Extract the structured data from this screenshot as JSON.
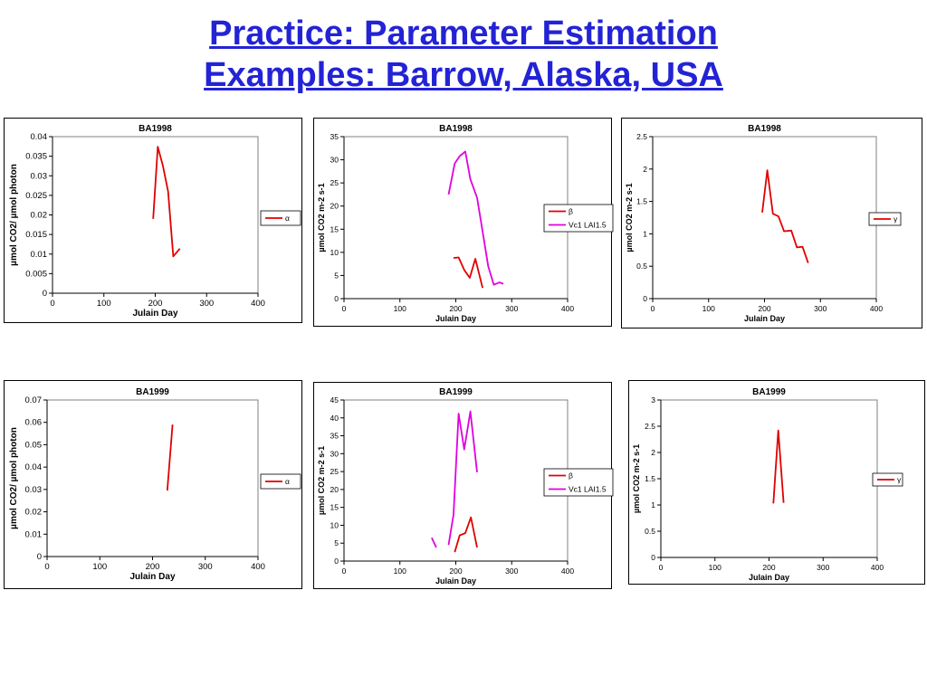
{
  "page": {
    "title_line1": "Practice: Parameter Estimation",
    "title_line2": "Examples: Barrow, Alaska, USA",
    "title_color": "#2323d6"
  },
  "chart_data": [
    {
      "type": "line",
      "title": "BA1998",
      "xlabel": "Julain Day",
      "ylabel": "µmol CO2/ µmol photon",
      "xlim": [
        0,
        400
      ],
      "xticks": [
        0,
        100,
        200,
        300,
        400
      ],
      "ylim": [
        0,
        0.04
      ],
      "yticks": [
        0,
        0.005,
        0.01,
        0.015,
        0.02,
        0.025,
        0.03,
        0.035,
        0.04
      ],
      "ytick_labels": [
        "0",
        "0.005",
        "0.01",
        "0.015",
        "0.02",
        "0.025",
        "0.03",
        "0.035",
        "0.04"
      ],
      "legend_position": "right",
      "grid": false,
      "series": [
        {
          "name": "α",
          "color": "#e00000",
          "segments": [
            [
              [
                196,
                0.019
              ],
              [
                205,
                0.0374
              ],
              [
                215,
                0.0325
              ],
              [
                225,
                0.026
              ],
              [
                235,
                0.0094
              ],
              [
                248,
                0.0114
              ]
            ]
          ]
        }
      ]
    },
    {
      "type": "line",
      "title": "BA1998",
      "xlabel": "Julain Day",
      "ylabel": "µmol CO2 m-2 s-1",
      "xlim": [
        0,
        400
      ],
      "xticks": [
        0,
        100,
        200,
        300,
        400
      ],
      "ylim": [
        0,
        35
      ],
      "yticks": [
        0,
        5,
        10,
        15,
        20,
        25,
        30,
        35
      ],
      "ytick_labels": [
        "0",
        "5",
        "10",
        "15",
        "20",
        "25",
        "30",
        "35"
      ],
      "legend_position": "right",
      "grid": false,
      "series": [
        {
          "name": "β",
          "color": "#e00000",
          "segments": [
            [
              [
                196,
                8.8
              ],
              [
                205,
                8.9
              ],
              [
                215,
                6.2
              ],
              [
                225,
                4.5
              ],
              [
                235,
                8.6
              ],
              [
                248,
                2.3
              ]
            ]
          ]
        },
        {
          "name": "Vc1 LAI1.5",
          "color": "#e000e0",
          "segments": [
            [
              [
                187,
                22.5
              ],
              [
                198,
                29.2
              ],
              [
                207,
                30.8
              ],
              [
                217,
                31.8
              ],
              [
                226,
                25.8
              ],
              [
                238,
                21.8
              ],
              [
                248,
                14.5
              ],
              [
                258,
                7.0
              ],
              [
                268,
                3.0
              ],
              [
                278,
                3.5
              ],
              [
                285,
                3.2
              ]
            ]
          ]
        }
      ]
    },
    {
      "type": "line",
      "title": "BA1998",
      "xlabel": "Julain Day",
      "ylabel": "µmol CO2 m-2 s-1",
      "xlim": [
        0,
        400
      ],
      "xticks": [
        0,
        100,
        200,
        300,
        400
      ],
      "ylim": [
        0,
        2.5
      ],
      "yticks": [
        0,
        0.5,
        1,
        1.5,
        2,
        2.5
      ],
      "ytick_labels": [
        "0",
        "0.5",
        "1",
        "1.5",
        "2",
        "2.5"
      ],
      "legend_position": "right",
      "grid": false,
      "series": [
        {
          "name": "γ",
          "color": "#e00000",
          "segments": [
            [
              [
                196,
                1.33
              ],
              [
                205,
                1.98
              ],
              [
                215,
                1.31
              ],
              [
                225,
                1.27
              ],
              [
                235,
                1.04
              ],
              [
                248,
                1.05
              ],
              [
                258,
                0.79
              ],
              [
                268,
                0.8
              ],
              [
                278,
                0.55
              ]
            ]
          ]
        }
      ]
    },
    {
      "type": "line",
      "title": "BA1999",
      "xlabel": "Julain Day",
      "ylabel": "µmol CO2/ µmol photon",
      "xlim": [
        0,
        400
      ],
      "xticks": [
        0,
        100,
        200,
        300,
        400
      ],
      "ylim": [
        0,
        0.07
      ],
      "yticks": [
        0,
        0.01,
        0.02,
        0.03,
        0.04,
        0.05,
        0.06,
        0.07
      ],
      "ytick_labels": [
        "0",
        "0.01",
        "0.02",
        "0.03",
        "0.04",
        "0.05",
        "0.06",
        "0.07"
      ],
      "legend_position": "right",
      "grid": false,
      "series": [
        {
          "name": "α",
          "color": "#e00000",
          "segments": [
            [
              [
                228,
                0.0295
              ],
              [
                238,
                0.059
              ]
            ]
          ]
        }
      ]
    },
    {
      "type": "line",
      "title": "BA1999",
      "xlabel": "Julain Day",
      "ylabel": "µmol CO2 m-2 s-1",
      "xlim": [
        0,
        400
      ],
      "xticks": [
        0,
        100,
        200,
        300,
        400
      ],
      "ylim": [
        0,
        45
      ],
      "yticks": [
        0,
        5,
        10,
        15,
        20,
        25,
        30,
        35,
        40,
        45
      ],
      "ytick_labels": [
        "0",
        "5",
        "10",
        "15",
        "20",
        "25",
        "30",
        "35",
        "40",
        "45"
      ],
      "legend_position": "right",
      "grid": false,
      "series": [
        {
          "name": "β",
          "color": "#e00000",
          "segments": [
            [
              [
                198,
                2.5
              ],
              [
                207,
                7.2
              ],
              [
                217,
                7.8
              ],
              [
                227,
                12.2
              ],
              [
                238,
                3.8
              ]
            ]
          ]
        },
        {
          "name": "Vc1 LAI1.5",
          "color": "#e000e0",
          "segments": [
            [
              [
                157,
                6.5
              ],
              [
                165,
                3.8
              ]
            ],
            [
              [
                187,
                4.5
              ],
              [
                196,
                13.0
              ],
              [
                205,
                41.2
              ],
              [
                215,
                31.2
              ],
              [
                226,
                41.8
              ],
              [
                238,
                24.8
              ]
            ]
          ]
        }
      ]
    },
    {
      "type": "line",
      "title": "BA1999",
      "xlabel": "Julain Day",
      "ylabel": "µmol CO2 m-2 s-1",
      "xlim": [
        0,
        400
      ],
      "xticks": [
        0,
        100,
        200,
        300,
        400
      ],
      "ylim": [
        0,
        3
      ],
      "yticks": [
        0,
        0.5,
        1,
        1.5,
        2,
        2.5,
        3
      ],
      "ytick_labels": [
        "0",
        "0.5",
        "1",
        "1.5",
        "2",
        "2.5",
        "3"
      ],
      "legend_position": "right",
      "grid": false,
      "series": [
        {
          "name": "γ",
          "color": "#e00000",
          "segments": [
            [
              [
                208,
                1.03
              ],
              [
                217,
                2.42
              ],
              [
                227,
                1.04
              ]
            ]
          ]
        }
      ]
    }
  ]
}
